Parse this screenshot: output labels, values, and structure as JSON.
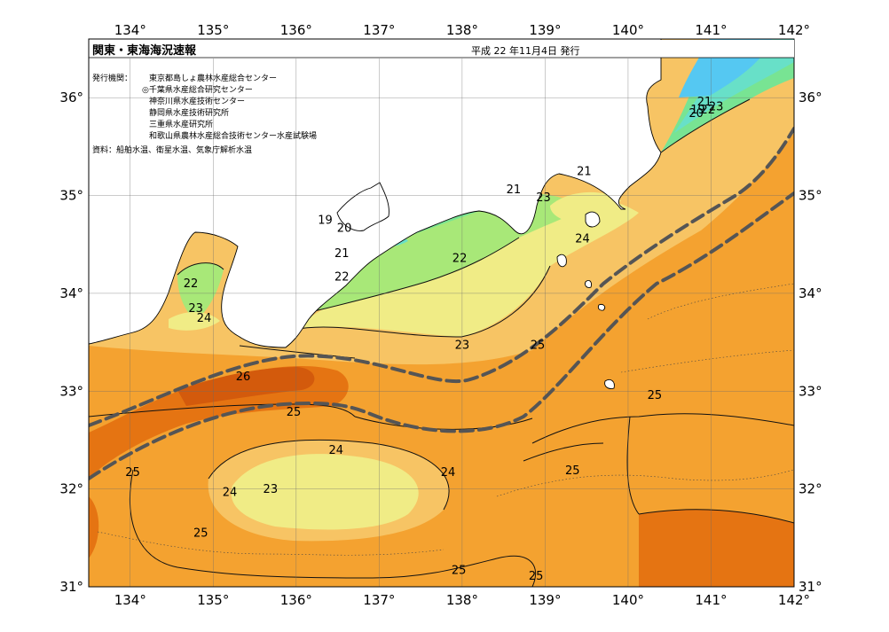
{
  "header": {
    "title": "関東・東海海況速報",
    "issue_date": "平成 22 年11月4日 発行"
  },
  "issuers": {
    "label": "発行機関：",
    "lines": [
      "東京都島しょ農林水産総合センター",
      "◎千葉県水産総合研究センター",
      "神奈川県水産技術センター",
      "静岡県水産技術研究所",
      "三重県水産研究所",
      "和歌山県農林水産総合技術センター水産試験場"
    ]
  },
  "sources": "資料：船舶水温、衛星水温、気象庁解析水温",
  "axes": {
    "lon_labels": [
      "134°",
      "135°",
      "136°",
      "137°",
      "138°",
      "139°",
      "140°",
      "141°",
      "142°"
    ],
    "lat_labels": [
      "31°",
      "32°",
      "33°",
      "34°",
      "35°",
      "36°"
    ]
  },
  "contour_labels": [
    {
      "text": "19",
      "lon": 136.35,
      "lat": 34.72
    },
    {
      "text": "20",
      "lon": 136.58,
      "lat": 34.64
    },
    {
      "text": "21",
      "lon": 136.55,
      "lat": 34.38
    },
    {
      "text": "22",
      "lon": 136.55,
      "lat": 34.14
    },
    {
      "text": "22",
      "lon": 137.97,
      "lat": 34.33
    },
    {
      "text": "23",
      "lon": 138.0,
      "lat": 33.44
    },
    {
      "text": "21",
      "lon": 138.62,
      "lat": 35.03
    },
    {
      "text": "23",
      "lon": 138.98,
      "lat": 34.95
    },
    {
      "text": "21",
      "lon": 139.47,
      "lat": 35.22
    },
    {
      "text": "24",
      "lon": 139.45,
      "lat": 34.53
    },
    {
      "text": "25",
      "lon": 138.91,
      "lat": 33.44
    },
    {
      "text": "22",
      "lon": 134.73,
      "lat": 34.07
    },
    {
      "text": "23",
      "lon": 134.79,
      "lat": 33.82
    },
    {
      "text": "24",
      "lon": 134.89,
      "lat": 33.72
    },
    {
      "text": "26",
      "lon": 135.36,
      "lat": 33.12
    },
    {
      "text": "25",
      "lon": 135.97,
      "lat": 32.76
    },
    {
      "text": "25",
      "lon": 140.32,
      "lat": 32.93
    },
    {
      "text": "24",
      "lon": 136.48,
      "lat": 32.37
    },
    {
      "text": "24",
      "lon": 137.83,
      "lat": 32.14
    },
    {
      "text": "24",
      "lon": 135.2,
      "lat": 31.94
    },
    {
      "text": "23",
      "lon": 135.69,
      "lat": 31.97
    },
    {
      "text": "25",
      "lon": 134.03,
      "lat": 32.14
    },
    {
      "text": "25",
      "lon": 134.85,
      "lat": 31.52
    },
    {
      "text": "25",
      "lon": 139.33,
      "lat": 32.16
    },
    {
      "text": "25",
      "lon": 137.96,
      "lat": 31.14
    },
    {
      "text": "25",
      "lon": 138.89,
      "lat": 31.08
    },
    {
      "text": "21",
      "lon": 140.92,
      "lat": 35.93
    },
    {
      "text": "19",
      "lon": 140.84,
      "lat": 35.85
    },
    {
      "text": "22",
      "lon": 140.96,
      "lat": 35.85
    },
    {
      "text": "23",
      "lon": 141.06,
      "lat": 35.88
    },
    {
      "text": "20",
      "lon": 140.82,
      "lat": 35.81
    }
  ],
  "colors": {
    "t19": "#55c8f2",
    "t20": "#68e0c8",
    "t21": "#78e493",
    "t22": "#a8e878",
    "t23": "#f0ec86",
    "t24": "#f7c464",
    "t25": "#f4a230",
    "t26": "#e57412",
    "t27": "#d35a0c",
    "land": "#ffffff",
    "grid": "#6c6c6c",
    "kuroshio": "#555555"
  }
}
